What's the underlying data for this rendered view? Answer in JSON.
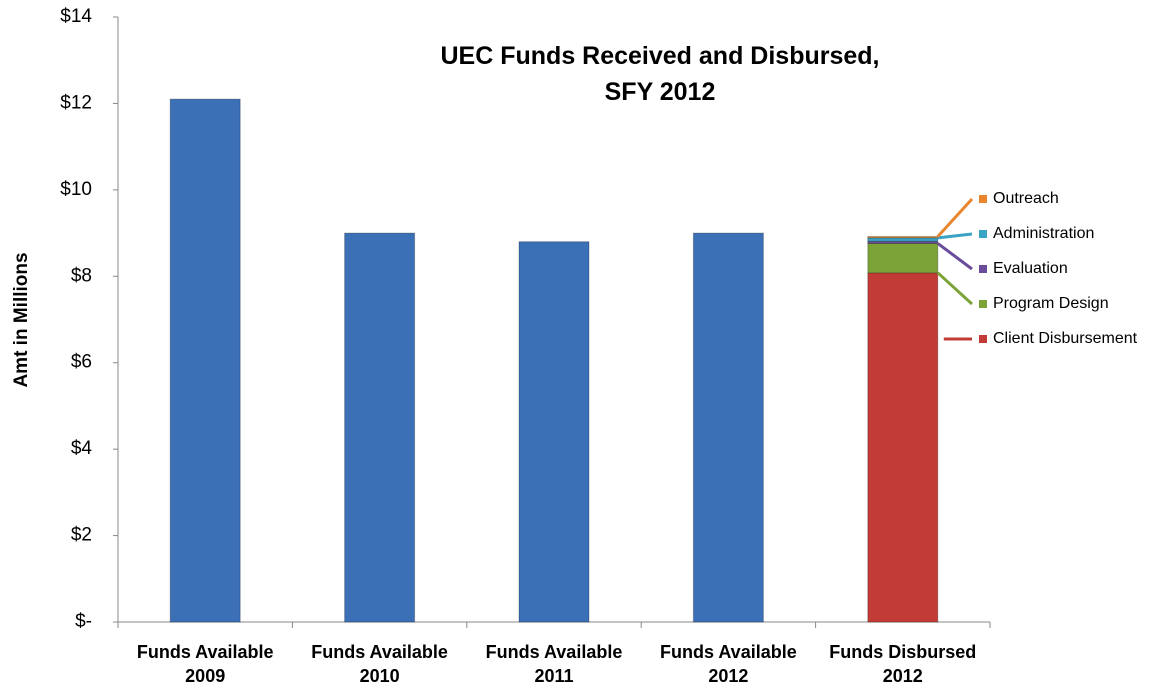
{
  "chart_data": {
    "type": "stacked-bar",
    "title": "UEC Funds Received and Disbursed,\nSFY 2012",
    "y_label": "Amt in Millions",
    "categories": [
      "Funds Available\n2009",
      "Funds Available\n2010",
      "Funds Available\n2011",
      "Funds Available\n2012",
      "Funds Disbursed\n2012"
    ],
    "series": [
      {
        "color": "#3b70b7",
        "values": [
          12.1,
          9.0,
          8.8,
          9.0,
          null
        ]
      },
      {
        "name": "Client Disbursement",
        "color": "#c33b36",
        "values": [
          null,
          null,
          null,
          null,
          8.08
        ]
      },
      {
        "name": "Program Design",
        "color": "#7ba338",
        "values": [
          null,
          null,
          null,
          null,
          0.68
        ]
      },
      {
        "name": "Evaluation",
        "color": "#6b4c9a",
        "values": [
          null,
          null,
          null,
          null,
          0.05
        ]
      },
      {
        "name": "Administration",
        "color": "#3aa3c4",
        "values": [
          null,
          null,
          null,
          null,
          0.08
        ]
      },
      {
        "name": "Outreach",
        "color": "#e8852e",
        "values": [
          null,
          null,
          null,
          null,
          0.03
        ]
      }
    ],
    "ylim": [
      0,
      14
    ],
    "yticks": [
      {
        "value": 0,
        "label": "$-"
      },
      {
        "value": 2,
        "label": "$2"
      },
      {
        "value": 4,
        "label": "$4"
      },
      {
        "value": 6,
        "label": "$6"
      },
      {
        "value": 8,
        "label": "$8"
      },
      {
        "value": 10,
        "label": "$10"
      },
      {
        "value": 12,
        "label": "$12"
      },
      {
        "value": 14,
        "label": "$14"
      }
    ],
    "grid": false
  }
}
